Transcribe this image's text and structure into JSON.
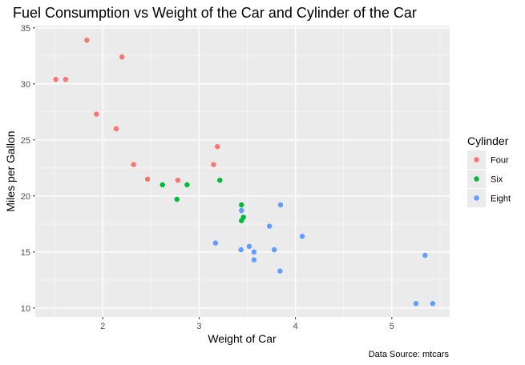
{
  "chart_data": {
    "type": "scatter",
    "title": "Fuel Consumption vs Weight of the Car and Cylinder of the Car",
    "xlabel": "Weight of Car",
    "ylabel": "Miles per Gallon",
    "caption": "Data Source: mtcars",
    "xlim": [
      1.3,
      5.6
    ],
    "ylim": [
      9.2,
      35.2
    ],
    "x_ticks": [
      2,
      3,
      4,
      5
    ],
    "y_ticks": [
      10,
      15,
      20,
      25,
      30,
      35
    ],
    "grid": true,
    "legend": {
      "title": "Cylinder",
      "placement": "right"
    },
    "series": [
      {
        "name": "Four",
        "color": "#F8766D",
        "points": [
          [
            2.32,
            22.8
          ],
          [
            3.19,
            24.4
          ],
          [
            3.15,
            22.8
          ],
          [
            2.2,
            32.4
          ],
          [
            1.615,
            30.4
          ],
          [
            1.835,
            33.9
          ],
          [
            2.465,
            21.5
          ],
          [
            1.935,
            27.3
          ],
          [
            2.14,
            26.0
          ],
          [
            1.513,
            30.4
          ],
          [
            2.78,
            21.4
          ]
        ]
      },
      {
        "name": "Six",
        "color": "#00BA38",
        "points": [
          [
            2.62,
            21.0
          ],
          [
            2.875,
            21.0
          ],
          [
            3.215,
            21.4
          ],
          [
            3.46,
            18.1
          ],
          [
            3.44,
            19.2
          ],
          [
            3.44,
            17.8
          ],
          [
            2.77,
            19.7
          ]
        ]
      },
      {
        "name": "Eight",
        "color": "#619CFF",
        "points": [
          [
            3.44,
            18.7
          ],
          [
            3.57,
            14.3
          ],
          [
            4.07,
            16.4
          ],
          [
            3.73,
            17.3
          ],
          [
            3.78,
            15.2
          ],
          [
            5.25,
            10.4
          ],
          [
            5.424,
            10.4
          ],
          [
            5.345,
            14.7
          ],
          [
            3.52,
            15.5
          ],
          [
            3.435,
            15.2
          ],
          [
            3.84,
            13.3
          ],
          [
            3.845,
            19.2
          ],
          [
            3.17,
            15.8
          ],
          [
            3.57,
            15.0
          ]
        ]
      }
    ]
  }
}
